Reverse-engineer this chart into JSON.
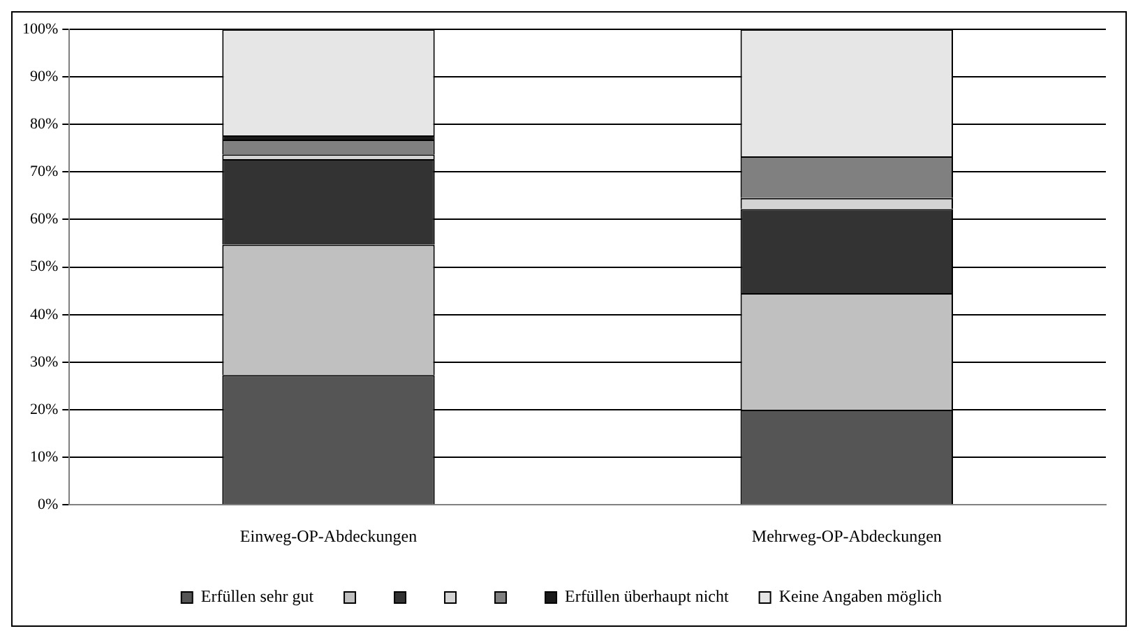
{
  "chart_data": {
    "type": "bar",
    "stacked": true,
    "categories": [
      "Einweg-OP-Abdeckungen",
      "Mehrweg-OP-Abdeckungen"
    ],
    "series": [
      {
        "name": "Erfüllen sehr gut",
        "color": "#555555",
        "values": [
          27.3,
          20.0
        ]
      },
      {
        "color": "#c0c0c0",
        "values": [
          27.4,
          24.5
        ]
      },
      {
        "color": "#333333",
        "values": [
          18.0,
          17.7
        ]
      },
      {
        "color": "#d4d4d4",
        "values": [
          1.0,
          2.3
        ]
      },
      {
        "color": "#808080",
        "values": [
          3.1,
          8.8
        ]
      },
      {
        "name": "Erfüllen überhaupt nicht",
        "color": "#1a1a1a",
        "values": [
          0.9,
          0.0
        ]
      },
      {
        "name": "Keine Angaben möglich",
        "color": "#e6e6e6",
        "values": [
          22.3,
          26.7
        ]
      }
    ],
    "ylim": [
      0,
      100
    ],
    "yticks": [
      {
        "value": 0,
        "label": "0%"
      },
      {
        "value": 10,
        "label": "10%"
      },
      {
        "value": 20,
        "label": "20%"
      },
      {
        "value": 30,
        "label": "30%"
      },
      {
        "value": 40,
        "label": "40%"
      },
      {
        "value": 50,
        "label": "50%"
      },
      {
        "value": 60,
        "label": "60%"
      },
      {
        "value": 70,
        "label": "70%"
      },
      {
        "value": 80,
        "label": "80%"
      },
      {
        "value": 90,
        "label": "90%"
      },
      {
        "value": 100,
        "label": "100%"
      }
    ],
    "grid": "y",
    "legend": "bottom"
  }
}
